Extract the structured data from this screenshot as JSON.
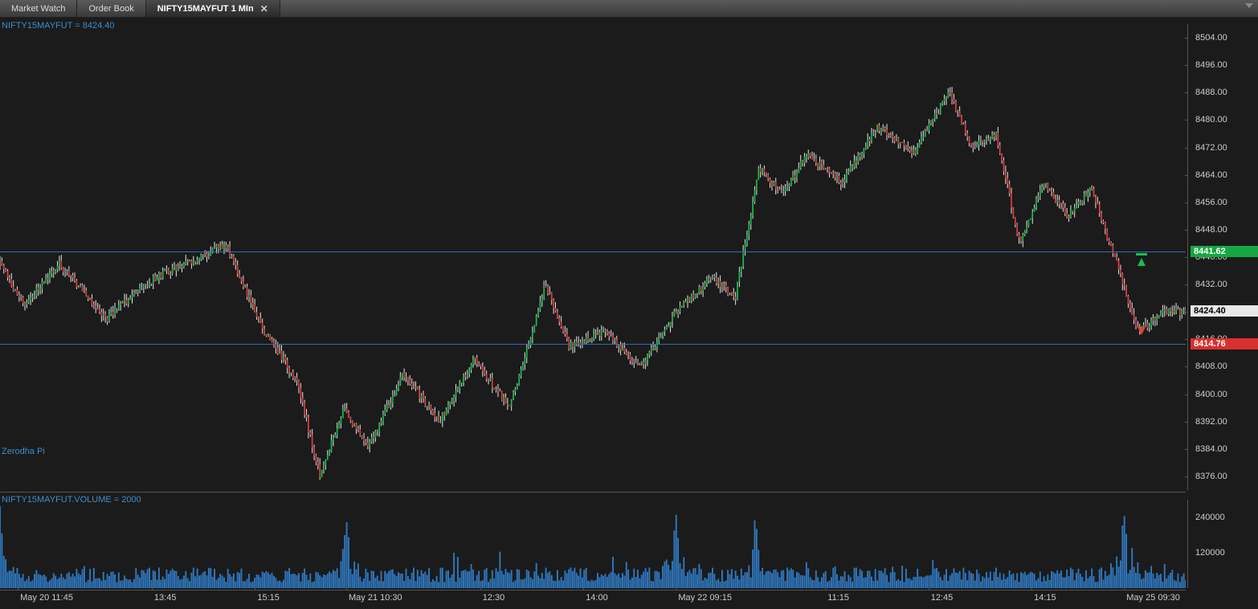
{
  "tabs": [
    {
      "label": "Market Watch",
      "active": false
    },
    {
      "label": "Order Book",
      "active": false
    },
    {
      "label": "NIFTY15MAYFUT 1 MIn",
      "active": true,
      "closeable": true
    }
  ],
  "instrument_label": "NIFTY15MAYFUT = 8424.40",
  "watermark": "Zerodha Pi",
  "volume_label": "NIFTY15MAYFUT.VOLUME = 2000",
  "colors": {
    "label_text": "#3a8fcf",
    "up_candle": "#1abf4f",
    "down_candle": "#e33d3d",
    "wick": "#e6e6e6",
    "volume_bar": "#2f78bf",
    "hline": "#2d6fb8",
    "bg": "#1b1b1b",
    "axis_text": "#cccccc",
    "tag_green": "#15a842",
    "tag_white": "#e8e8e8",
    "tag_red": "#d92f2f"
  },
  "price_chart": {
    "type": "candlestick",
    "ylim": [
      8372,
      8508
    ],
    "ytick_step": 8,
    "yticks": [
      8376,
      8384,
      8392,
      8400,
      8408,
      8416,
      8424,
      8432,
      8440,
      8448,
      8456,
      8464,
      8472,
      8480,
      8488,
      8496,
      8504
    ],
    "hlines": [
      {
        "price": 8441.62,
        "tag_color": "#15a842",
        "text_color": "#ffffff"
      },
      {
        "price": 8424.4,
        "tag_color": "#e8e8e8",
        "text_color": "#000000",
        "no_line": true
      },
      {
        "price": 8414.76,
        "tag_color": "#d92f2f",
        "text_color": "#ffffff"
      }
    ],
    "markers": [
      {
        "x": 0.963,
        "price": 8438.5,
        "type": "up"
      },
      {
        "x": 0.963,
        "price": 8418.5,
        "type": "dn"
      },
      {
        "x": 0.963,
        "price": 8441.0,
        "type": "dash",
        "color": "#1abf4f"
      }
    ]
  },
  "volume_chart": {
    "type": "bar",
    "ymax": 300000,
    "yticks": [
      120000,
      240000
    ]
  },
  "xaxis": {
    "ticks": [
      {
        "pos": 0.015,
        "label": "May 20 11:45"
      },
      {
        "pos": 0.128,
        "label": "13:45"
      },
      {
        "pos": 0.215,
        "label": "15:15"
      },
      {
        "pos": 0.292,
        "label": "May 21 10:30"
      },
      {
        "pos": 0.405,
        "label": "12:30"
      },
      {
        "pos": 0.492,
        "label": "14:00"
      },
      {
        "pos": 0.57,
        "label": "May 22 09:15"
      },
      {
        "pos": 0.696,
        "label": "11:15"
      },
      {
        "pos": 0.783,
        "label": "12:45"
      },
      {
        "pos": 0.87,
        "label": "14:15"
      },
      {
        "pos": 0.948,
        "label": "May 25 09:30"
      }
    ]
  }
}
